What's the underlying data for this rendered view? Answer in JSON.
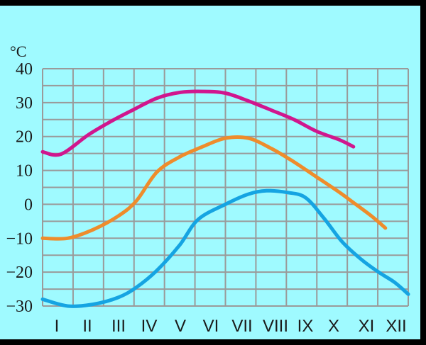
{
  "chart_data": {
    "type": "line",
    "title": "",
    "xlabel": "",
    "ylabel": "°C",
    "categories": [
      "I",
      "II",
      "III",
      "IV",
      "V",
      "VI",
      "VII",
      "VIII",
      "IX",
      "X",
      "XI",
      "XII"
    ],
    "ylim": [
      -30,
      40
    ],
    "yticks": [
      40,
      30,
      20,
      10,
      0,
      -10,
      -20,
      -30
    ],
    "grid": true,
    "legend": "none",
    "series": [
      {
        "color": "#d0168e",
        "points": [
          [
            0.5,
            15.5
          ],
          [
            1.3,
            14.8
          ],
          [
            2.5,
            20.5
          ],
          [
            3.5,
            24.5
          ],
          [
            4.5,
            28
          ],
          [
            5.5,
            31.3
          ],
          [
            6.5,
            33
          ],
          [
            7.5,
            33.3
          ],
          [
            8.5,
            32.8
          ],
          [
            9.5,
            30.5
          ],
          [
            10.5,
            27.8
          ],
          [
            11.5,
            25
          ],
          [
            12.5,
            21.5
          ],
          [
            13.5,
            19
          ],
          [
            14.1,
            17
          ]
        ]
      },
      {
        "color": "#ee8c2c",
        "points": [
          [
            0.5,
            -10
          ],
          [
            1.6,
            -10
          ],
          [
            2.7,
            -7.5
          ],
          [
            3.8,
            -3.5
          ],
          [
            4.6,
            1
          ],
          [
            5.5,
            9.5
          ],
          [
            6.5,
            14
          ],
          [
            7.5,
            17
          ],
          [
            8.5,
            19.5
          ],
          [
            9.5,
            19.5
          ],
          [
            10.5,
            16.5
          ],
          [
            11.5,
            12.5
          ],
          [
            12.5,
            8
          ],
          [
            13.5,
            3.5
          ],
          [
            14.1,
            0.5
          ],
          [
            14.9,
            -3.5
          ],
          [
            15.5,
            -7
          ]
        ]
      },
      {
        "color": "#15a4e2",
        "points": [
          [
            0.5,
            -28
          ],
          [
            1.6,
            -30
          ],
          [
            2.7,
            -29.5
          ],
          [
            3.8,
            -27.5
          ],
          [
            4.6,
            -24.5
          ],
          [
            5.5,
            -19.5
          ],
          [
            6.5,
            -12
          ],
          [
            7.3,
            -4.5
          ],
          [
            8.5,
            0
          ],
          [
            9.5,
            3
          ],
          [
            10.3,
            4
          ],
          [
            11.2,
            3.5
          ],
          [
            12,
            2
          ],
          [
            12.8,
            -4
          ],
          [
            13.6,
            -11
          ],
          [
            14.4,
            -16
          ],
          [
            15.2,
            -20
          ],
          [
            15.9,
            -23
          ],
          [
            16.5,
            -26.5
          ]
        ]
      }
    ]
  }
}
